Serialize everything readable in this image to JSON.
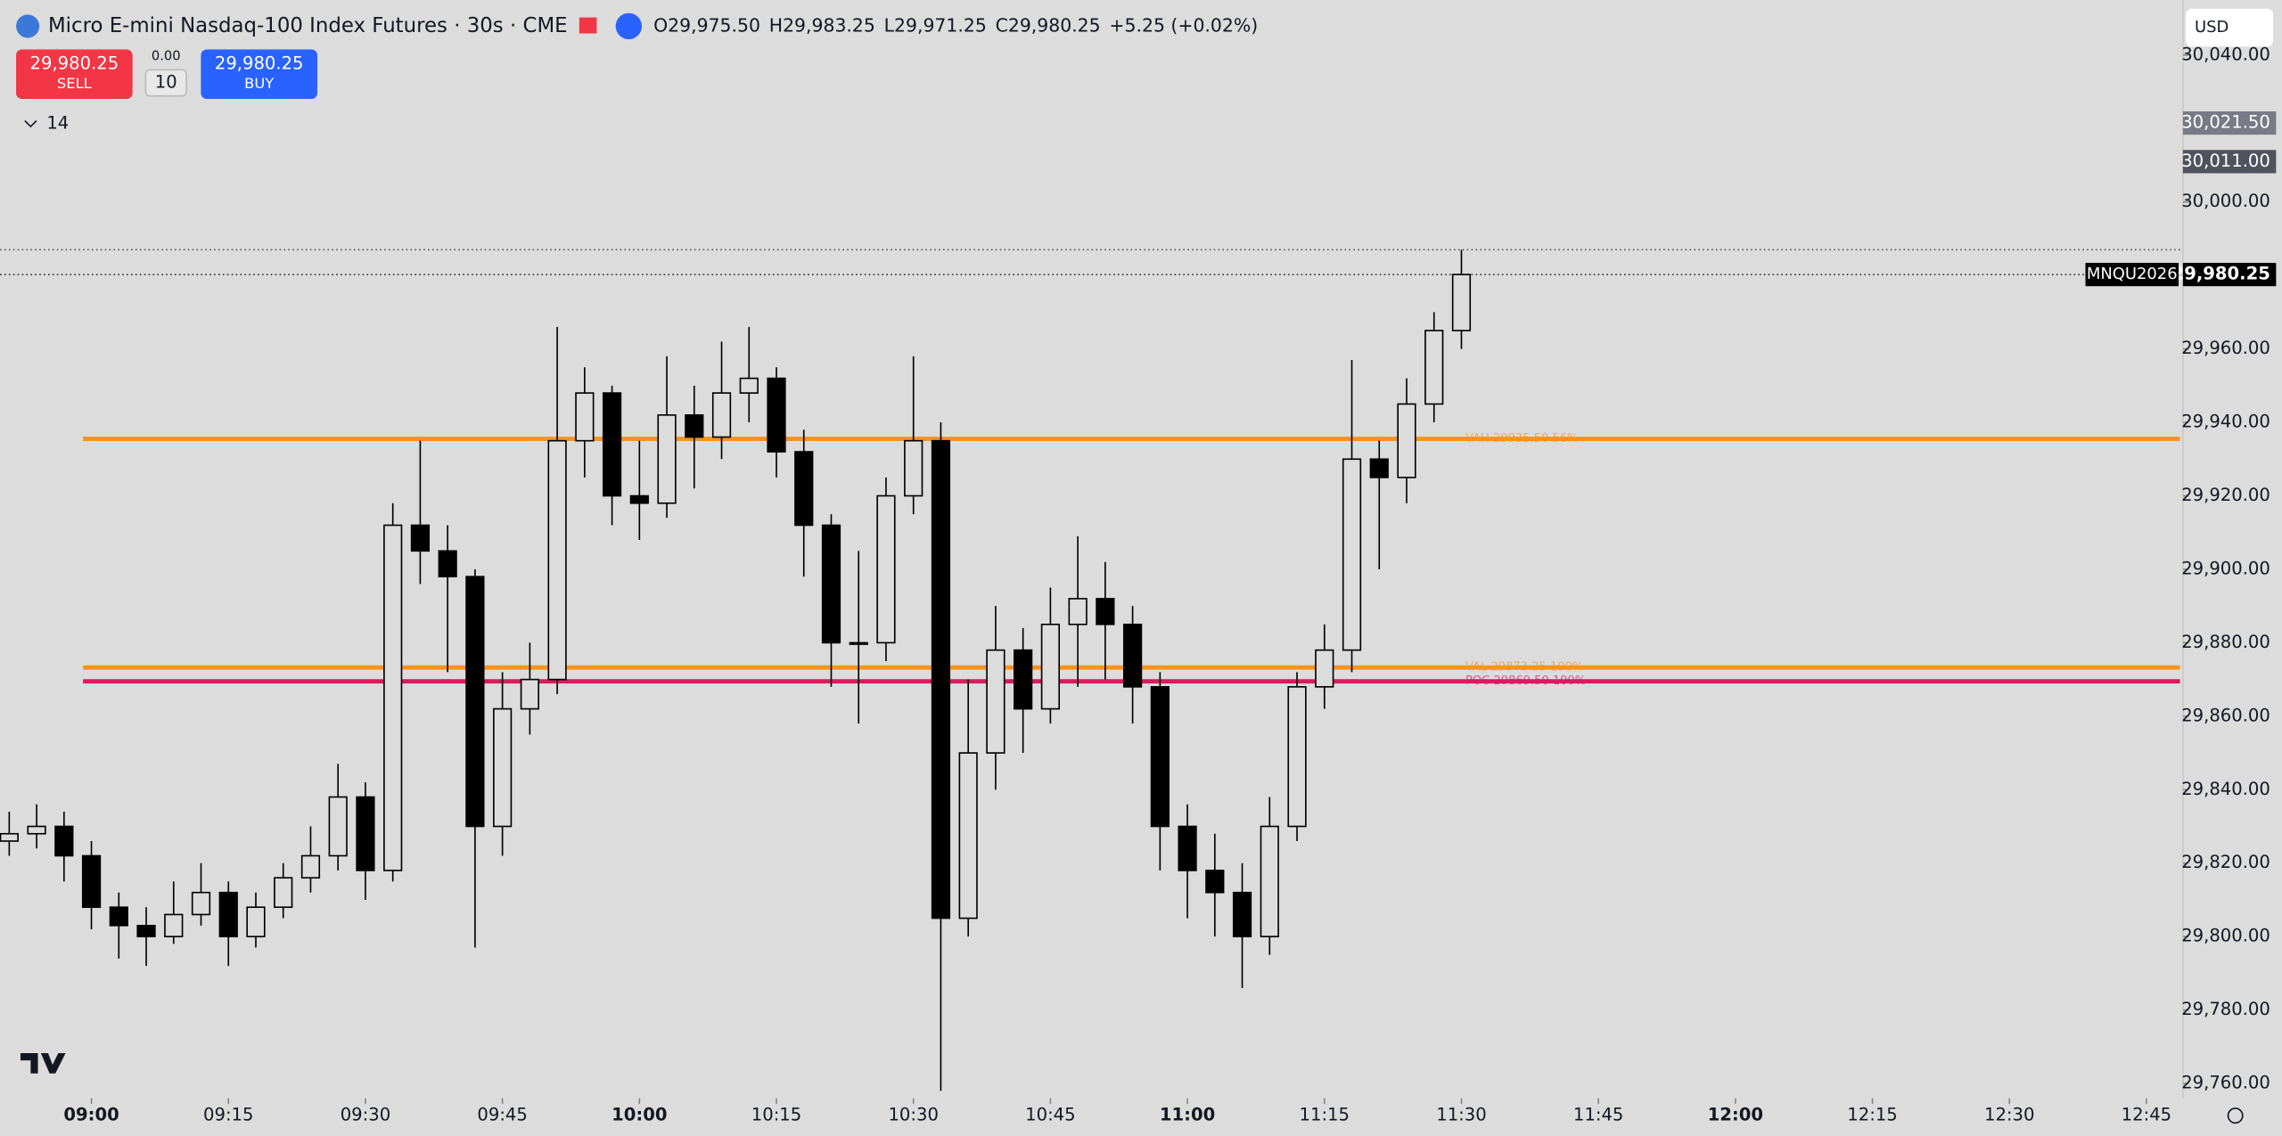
{
  "header": {
    "title": "Micro E-mini Nasdaq-100 Index Futures · 30s · CME",
    "ohlc": [
      {
        "key": "O",
        "value": "29,975.50"
      },
      {
        "key": "H",
        "value": "29,983.25"
      },
      {
        "key": "L",
        "value": "29,971.25"
      },
      {
        "key": "C",
        "value": "29,980.25"
      }
    ],
    "change": "+5.25 (+0.02%)",
    "currency": "USD"
  },
  "trade_panel": {
    "sell_price": "29,980.25",
    "sell_label": "SELL",
    "spread": "0.00",
    "quantity": "10",
    "buy_price": "29,980.25",
    "buy_label": "BUY",
    "indicators_count": "14"
  },
  "chart_data": {
    "type": "candlestick",
    "x": [
      "08:51",
      "08:54",
      "08:57",
      "09:00",
      "09:03",
      "09:06",
      "09:09",
      "09:12",
      "09:15",
      "09:18",
      "09:21",
      "09:24",
      "09:27",
      "09:30",
      "09:33",
      "09:36",
      "09:39",
      "09:42",
      "09:45",
      "09:48",
      "09:51",
      "09:54",
      "09:57",
      "10:00",
      "10:03",
      "10:06",
      "10:09",
      "10:12",
      "10:15",
      "10:18",
      "10:21",
      "10:24",
      "10:27",
      "10:30",
      "10:33",
      "10:36",
      "10:39",
      "10:42",
      "10:45",
      "10:48",
      "10:51",
      "10:54",
      "10:57",
      "11:00",
      "11:03",
      "11:06",
      "11:09",
      "11:12",
      "11:15",
      "11:18",
      "11:21",
      "11:24",
      "11:27",
      "11:30"
    ],
    "open": [
      29826,
      29828,
      29830,
      29822,
      29808,
      29803,
      29800,
      29806,
      29812,
      29800,
      29808,
      29816,
      29822,
      29838,
      29818,
      29912,
      29905,
      29898,
      29830,
      29862,
      29870,
      29935,
      29948,
      29920,
      29918,
      29942,
      29936,
      29948,
      29952,
      29932,
      29912,
      29880,
      29880,
      29920,
      29935,
      29805,
      29850,
      29878,
      29862,
      29885,
      29892,
      29885,
      29868,
      29830,
      29818,
      29812,
      29800,
      29830,
      29868,
      29878,
      29930,
      29925,
      29945,
      29965
    ],
    "high": [
      29834,
      29836,
      29834,
      29826,
      29812,
      29808,
      29815,
      29820,
      29815,
      29812,
      29820,
      29830,
      29847,
      29842,
      29918,
      29935,
      29912,
      29900,
      29872,
      29880,
      29966,
      29955,
      29950,
      29935,
      29958,
      29950,
      29962,
      29966,
      29955,
      29938,
      29915,
      29905,
      29925,
      29958,
      29940,
      29870,
      29890,
      29884,
      29895,
      29909,
      29902,
      29890,
      29872,
      29836,
      29828,
      29820,
      29838,
      29872,
      29885,
      29957,
      29935,
      29952,
      29970,
      29987
    ],
    "low": [
      29822,
      29824,
      29815,
      29802,
      29794,
      29792,
      29798,
      29803,
      29792,
      29797,
      29805,
      29812,
      29818,
      29810,
      29815,
      29896,
      29872,
      29797,
      29822,
      29855,
      29866,
      29925,
      29912,
      29908,
      29914,
      29922,
      29930,
      29940,
      29925,
      29898,
      29868,
      29858,
      29875,
      29915,
      29758,
      29800,
      29840,
      29850,
      29858,
      29868,
      29870,
      29858,
      29818,
      29805,
      29800,
      29786,
      29795,
      29826,
      29862,
      29872,
      29900,
      29918,
      29940,
      29960
    ],
    "close": [
      29828,
      29830,
      29822,
      29808,
      29803,
      29800,
      29806,
      29812,
      29800,
      29808,
      29816,
      29822,
      29838,
      29818,
      29912,
      29905,
      29898,
      29830,
      29862,
      29870,
      29935,
      29948,
      29920,
      29918,
      29942,
      29936,
      29948,
      29952,
      29932,
      29912,
      29880,
      29880,
      29920,
      29935,
      29805,
      29850,
      29878,
      29862,
      29885,
      29892,
      29885,
      29868,
      29830,
      29818,
      29812,
      29800,
      29830,
      29868,
      29878,
      29930,
      29925,
      29945,
      29965,
      29980.25
    ],
    "up_color": "#dcdcdc",
    "down_color": "#000000",
    "xlim": [
      "08:50",
      "12:49"
    ],
    "xticks": [
      "09:00",
      "09:15",
      "09:30",
      "09:45",
      "10:00",
      "10:15",
      "10:30",
      "10:45",
      "11:00",
      "11:15",
      "11:30",
      "11:45",
      "12:00",
      "12:15",
      "12:30",
      "12:45"
    ],
    "ylim": [
      29756,
      30055
    ],
    "yticks": [
      {
        "value": 29760,
        "label": "29,760.00"
      },
      {
        "value": 29780,
        "label": "29,780.00"
      },
      {
        "value": 29800,
        "label": "29,800.00"
      },
      {
        "value": 29820,
        "label": "29,820.00"
      },
      {
        "value": 29840,
        "label": "29,840.00"
      },
      {
        "value": 29860,
        "label": "29,860.00"
      },
      {
        "value": 29880,
        "label": "29,880.00"
      },
      {
        "value": 29900,
        "label": "29,900.00"
      },
      {
        "value": 29920,
        "label": "29,920.00"
      },
      {
        "value": 29940,
        "label": "29,940.00"
      },
      {
        "value": 29960,
        "label": "29,960.00"
      },
      {
        "value": 30000,
        "label": "30,000.00"
      },
      {
        "value": 30040,
        "label": "30,040.00"
      }
    ],
    "levels": [
      {
        "label": "VAH 29935.50 56%",
        "value": 29935.5,
        "color": "#f7931a"
      },
      {
        "label": "VAL 29873.25 100%",
        "value": 29873.25,
        "color": "#f7931a"
      },
      {
        "label": "POC 29869.50 100%",
        "value": 29869.5,
        "color": "#d81b60"
      }
    ],
    "price_labels": [
      {
        "value": 30021.5,
        "label": "30,021.50",
        "color": "#787b86"
      },
      {
        "value": 30011,
        "label": "30,011.00",
        "color": "#50535e"
      }
    ],
    "last_price": {
      "value": 29980.25,
      "label": "29,980.25",
      "symbol": "MNQU2026"
    }
  }
}
